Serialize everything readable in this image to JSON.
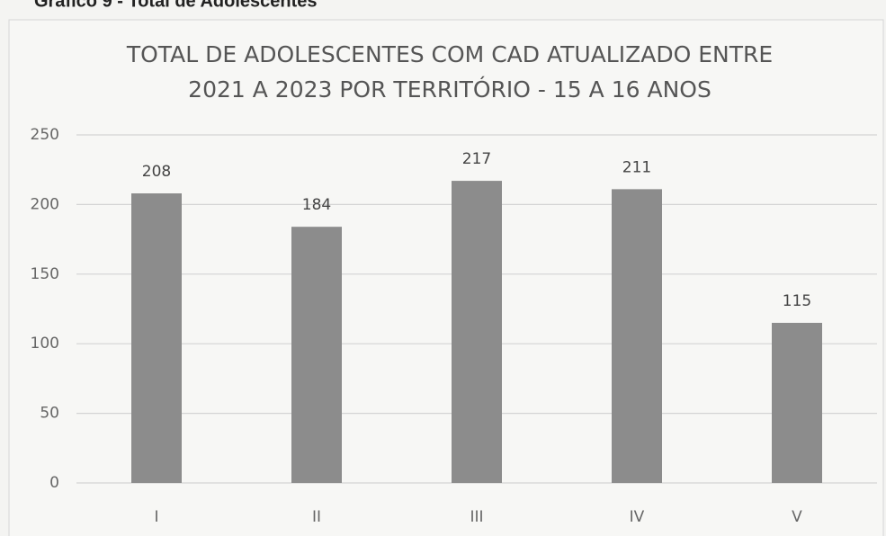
{
  "caption": "Gráfico 9 - Total de Adolescentes",
  "chart_data": {
    "type": "bar",
    "title": [
      "TOTAL DE ADOLESCENTES COM CAD ATUALIZADO ENTRE",
      "2021 A 2023 POR TERRITÓRIO - 15 A 16 ANOS"
    ],
    "categories": [
      "I",
      "II",
      "III",
      "IV",
      "V"
    ],
    "values": [
      208,
      184,
      217,
      211,
      115
    ],
    "color": "#8c8c8c",
    "ylim": [
      0,
      250
    ],
    "yticks": [
      0,
      50,
      100,
      150,
      200,
      250
    ],
    "grid": true,
    "data_labels": true
  }
}
